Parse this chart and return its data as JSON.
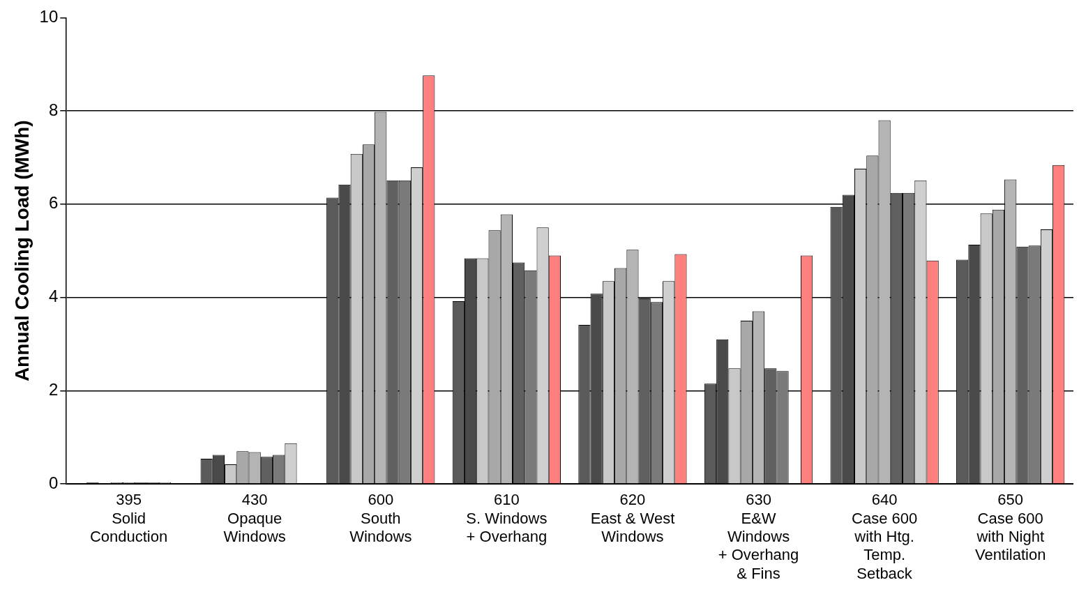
{
  "chart_data": {
    "type": "bar",
    "ylabel": "Annual Cooling Load (MWh)",
    "categories": [
      "395\nSolid\nConduction",
      "430\nOpaque\nWindows",
      "600\nSouth\nWindows",
      "610\nS. Windows\n+ Overhang",
      "620\nEast & West\nWindows",
      "630\nE&W\nWindows\n+ Overhang\n& Fins",
      "640\nCase 600\nwith Htg.\nTemp.\nSetback",
      "650\nCase 600\nwith Night\nVentilation"
    ],
    "series": [
      {
        "color": "#5a5a5a",
        "values": [
          null,
          0.54,
          6.14,
          3.92,
          3.41,
          2.15,
          5.94,
          4.81
        ]
      },
      {
        "color": "#4a4a4a",
        "values": [
          0.03,
          0.62,
          6.42,
          4.84,
          4.08,
          3.1,
          6.2,
          5.13
        ]
      },
      {
        "color": "#c8c8c8",
        "values": [
          null,
          0.42,
          7.08,
          4.84,
          4.35,
          2.48,
          6.76,
          5.8
        ]
      },
      {
        "color": "#a8a8a8",
        "values": [
          0.03,
          0.7,
          7.28,
          5.44,
          4.63,
          3.5,
          7.04,
          5.88
        ]
      },
      {
        "color": "#b4b4b4",
        "values": [
          0.03,
          0.68,
          7.98,
          5.78,
          5.02,
          3.7,
          7.8,
          6.53
        ]
      },
      {
        "color": "#606060",
        "values": [
          0.03,
          0.58,
          6.51,
          4.75,
          3.98,
          2.48,
          6.24,
          5.09
        ]
      },
      {
        "color": "#7a7a7a",
        "values": [
          0.03,
          0.62,
          6.51,
          4.58,
          3.9,
          2.42,
          6.24,
          5.11
        ]
      },
      {
        "color": "#cfcfcf",
        "values": [
          0.03,
          0.87,
          6.79,
          5.5,
          4.35,
          null,
          6.51,
          5.46
        ]
      },
      {
        "color": "#ff7f7f",
        "values": [
          null,
          null,
          8.76,
          4.9,
          4.93,
          4.9,
          4.79,
          6.84
        ]
      }
    ],
    "ylim": [
      0,
      10
    ],
    "yticks": [
      0,
      2,
      4,
      6,
      8,
      10
    ],
    "grid": "y",
    "legend": false
  }
}
